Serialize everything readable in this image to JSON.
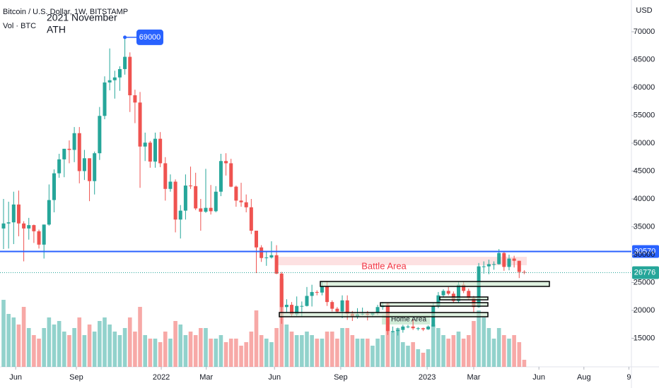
{
  "chart_data": {
    "type": "candlestick",
    "title": "Bitcoin / U.S. Dollar, 1W, BITSTAMP",
    "volume_title": "Vol · BTC",
    "currency": "USD",
    "ath_note": [
      "2021 November",
      "ATH"
    ],
    "ath": 69000,
    "battle_label": "Battle Area",
    "home_label": "Home Area",
    "up_color": "#26a69a",
    "down_color": "#ef5350",
    "hline": {
      "value": 30570,
      "color": "#2962ff"
    },
    "last_price": {
      "value": 26776,
      "color": "#26a69a"
    },
    "ylim": [
      9873,
      75696
    ],
    "yticks": [
      15000,
      20000,
      25000,
      30000,
      35000,
      40000,
      45000,
      50000,
      55000,
      60000,
      65000,
      70000
    ],
    "grid": false,
    "xlim": [
      -0.7,
      124.2
    ],
    "xticks": [
      {
        "value": 2.4,
        "label": "Jun"
      },
      {
        "value": 14.4,
        "label": "Sep"
      },
      {
        "value": 31.2,
        "label": "2022"
      },
      {
        "value": 40.1,
        "label": "Mar"
      },
      {
        "value": 53.6,
        "label": "Jun"
      },
      {
        "value": 66.7,
        "label": "Sep"
      },
      {
        "value": 83.8,
        "label": "2023"
      },
      {
        "value": 93.0,
        "label": "Mar"
      },
      {
        "value": 105.9,
        "label": "Jun"
      },
      {
        "value": 114.8,
        "label": "Aug"
      },
      {
        "value": 123.7,
        "label": "9"
      }
    ],
    "volume_ylim": [
      0,
      200
    ],
    "ohlc": [
      [
        34700,
        40000,
        31000,
        35600
      ],
      [
        35600,
        39500,
        31100,
        35800
      ],
      [
        35800,
        41300,
        31900,
        39000
      ],
      [
        39000,
        41500,
        33300,
        35600
      ],
      [
        35600,
        36000,
        28800,
        34700
      ],
      [
        34700,
        36600,
        32700,
        35300
      ],
      [
        35300,
        35400,
        32100,
        34200
      ],
      [
        34200,
        34500,
        31100,
        31800
      ],
      [
        31800,
        35400,
        29300,
        35400
      ],
      [
        35400,
        42600,
        35200,
        39800
      ],
      [
        39800,
        45300,
        37600,
        44600
      ],
      [
        44600,
        48100,
        43800,
        47100
      ],
      [
        47100,
        49000,
        43900,
        49000
      ],
      [
        49000,
        50500,
        46400,
        48800
      ],
      [
        48800,
        52900,
        46600,
        51800
      ],
      [
        51800,
        52900,
        42800,
        45000
      ],
      [
        45000,
        48800,
        43400,
        47300
      ],
      [
        47300,
        47300,
        39600,
        43200
      ],
      [
        43200,
        48500,
        40800,
        48200
      ],
      [
        48200,
        56500,
        47000,
        54900
      ],
      [
        54900,
        62000,
        54300,
        60900
      ],
      [
        60900,
        67000,
        59500,
        61300
      ],
      [
        61300,
        63000,
        58000,
        61800
      ],
      [
        61800,
        63800,
        59400,
        63300
      ],
      [
        63300,
        69000,
        62300,
        65500
      ],
      [
        65500,
        66300,
        55600,
        58600
      ],
      [
        58600,
        59600,
        53600,
        57300
      ],
      [
        57300,
        59200,
        42000,
        49400
      ],
      [
        49400,
        51900,
        46800,
        50100
      ],
      [
        50100,
        50400,
        45600,
        46700
      ],
      [
        46700,
        51900,
        45600,
        50800
      ],
      [
        50800,
        52000,
        45700,
        46400
      ],
      [
        46400,
        47500,
        39700,
        41800
      ],
      [
        41800,
        44400,
        41300,
        43100
      ],
      [
        43100,
        43500,
        34000,
        36300
      ],
      [
        36300,
        38900,
        32900,
        37900
      ],
      [
        37900,
        44400,
        36300,
        42400
      ],
      [
        42400,
        45800,
        41800,
        42300
      ],
      [
        42300,
        44700,
        38000,
        38300
      ],
      [
        38300,
        40000,
        34300,
        37700
      ],
      [
        37700,
        45400,
        37500,
        38400
      ],
      [
        38400,
        42500,
        37200,
        37800
      ],
      [
        37800,
        42300,
        37600,
        41300
      ],
      [
        41300,
        48100,
        40500,
        46800
      ],
      [
        46800,
        48200,
        44200,
        46400
      ],
      [
        46400,
        47200,
        42100,
        42200
      ],
      [
        42200,
        42400,
        38600,
        39700
      ],
      [
        39700,
        42900,
        38600,
        39400
      ],
      [
        39400,
        40800,
        37600,
        38500
      ],
      [
        38500,
        40000,
        33700,
        34300
      ],
      [
        34300,
        34300,
        26700,
        31300
      ],
      [
        31300,
        31700,
        28700,
        29400
      ],
      [
        29400,
        30600,
        28000,
        29500
      ],
      [
        29500,
        32400,
        29300,
        29900
      ],
      [
        29900,
        31700,
        26500,
        26600
      ],
      [
        26600,
        26900,
        17600,
        20600
      ],
      [
        20600,
        22000,
        19700,
        21000
      ],
      [
        21000,
        21500,
        18800,
        19300
      ],
      [
        19300,
        22500,
        19000,
        20800
      ],
      [
        20800,
        21600,
        18900,
        20800
      ],
      [
        20800,
        24200,
        20700,
        22600
      ],
      [
        22600,
        24600,
        20700,
        23300
      ],
      [
        23300,
        23600,
        22700,
        23200
      ],
      [
        23200,
        25100,
        22700,
        24300
      ],
      [
        24300,
        25200,
        20800,
        21500
      ],
      [
        21500,
        21800,
        19800,
        20300
      ],
      [
        20300,
        20600,
        19600,
        19800
      ],
      [
        19800,
        22700,
        18600,
        21800
      ],
      [
        21800,
        22700,
        18300,
        19400
      ],
      [
        19400,
        19900,
        18100,
        18800
      ],
      [
        18800,
        20400,
        18500,
        19300
      ],
      [
        19300,
        20500,
        19100,
        19400
      ],
      [
        19400,
        19900,
        18200,
        19200
      ],
      [
        19200,
        19700,
        18900,
        19600
      ],
      [
        19600,
        21000,
        19200,
        20600
      ],
      [
        20600,
        21500,
        20100,
        20900
      ],
      [
        20900,
        21400,
        15600,
        16300
      ],
      [
        16300,
        17100,
        16000,
        16300
      ],
      [
        16300,
        16900,
        15500,
        16500
      ],
      [
        16500,
        17400,
        16000,
        17100
      ],
      [
        17100,
        17400,
        16800,
        17100
      ],
      [
        17100,
        18400,
        16500,
        16800
      ],
      [
        16800,
        17000,
        16400,
        16800
      ],
      [
        16800,
        16900,
        16300,
        16600
      ],
      [
        16600,
        17300,
        16500,
        17100
      ],
      [
        17100,
        21400,
        17100,
        20800
      ],
      [
        20800,
        23300,
        20400,
        22700
      ],
      [
        22700,
        23800,
        22300,
        23500
      ],
      [
        23500,
        24200,
        22700,
        23000
      ],
      [
        23000,
        23400,
        21400,
        21700
      ],
      [
        21700,
        25200,
        21400,
        24600
      ],
      [
        24600,
        25200,
        23100,
        23500
      ],
      [
        23500,
        23900,
        21900,
        22200
      ],
      [
        22200,
        22600,
        19600,
        20600
      ],
      [
        20600,
        28500,
        20500,
        27900
      ],
      [
        27900,
        28800,
        26600,
        27900
      ],
      [
        27900,
        29100,
        26500,
        28300
      ],
      [
        28300,
        28800,
        27300,
        28300
      ],
      [
        28300,
        31000,
        28200,
        30300
      ],
      [
        30300,
        30500,
        27100,
        27800
      ],
      [
        27800,
        30000,
        27200,
        29300
      ],
      [
        29300,
        29800,
        27700,
        28900
      ],
      [
        28900,
        28900,
        25800,
        26900
      ],
      [
        26900,
        27200,
        26500,
        26776
      ]
    ],
    "volume": [
      95,
      75,
      70,
      60,
      85,
      55,
      45,
      40,
      55,
      70,
      60,
      65,
      50,
      45,
      55,
      70,
      45,
      60,
      50,
      65,
      70,
      60,
      50,
      45,
      55,
      70,
      50,
      85,
      45,
      40,
      40,
      35,
      50,
      40,
      65,
      60,
      45,
      50,
      45,
      55,
      55,
      40,
      40,
      45,
      35,
      40,
      40,
      30,
      35,
      50,
      80,
      45,
      40,
      35,
      55,
      125,
      60,
      50,
      45,
      45,
      50,
      45,
      40,
      40,
      50,
      50,
      40,
      55,
      55,
      45,
      40,
      40,
      40,
      30,
      40,
      45,
      90,
      50,
      55,
      35,
      30,
      35,
      25,
      20,
      25,
      60,
      55,
      45,
      40,
      45,
      50,
      40,
      45,
      65,
      80,
      70,
      55,
      40,
      55,
      45,
      40,
      45,
      35,
      10
    ]
  }
}
